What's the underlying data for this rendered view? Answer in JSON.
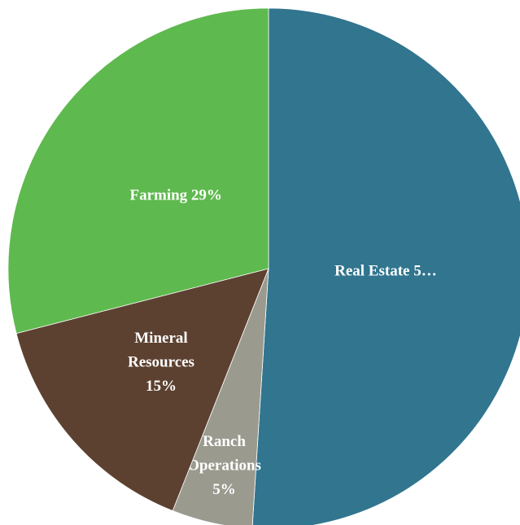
{
  "chart_data": {
    "type": "pie",
    "values": [
      51,
      5,
      15,
      29
    ],
    "value_labels": [
      "Real Estate 5…",
      "Ranch Operations 5%",
      "Mineral Resources 15%",
      "Farming 29%"
    ],
    "colors": [
      "#31758f",
      "#9a9a8f",
      "#5d4130",
      "#5eb94e"
    ]
  }
}
